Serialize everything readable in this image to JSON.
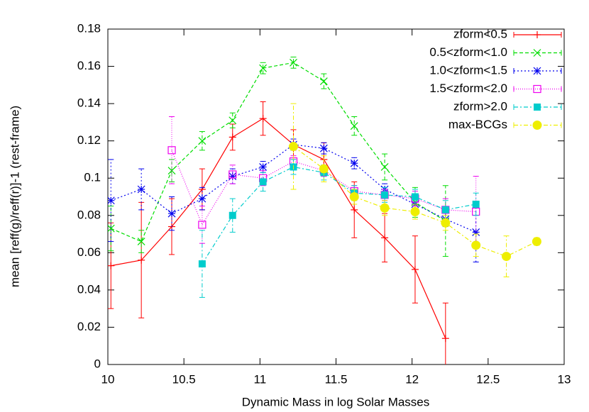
{
  "chart_data": {
    "type": "line",
    "x_label": "Dynamic Mass in log Solar Masses",
    "y_label": "mean [reff(g)/reff(r)]-1 (rest-frame)",
    "xlim": [
      10,
      13
    ],
    "xticks": [
      10,
      10.5,
      11,
      11.5,
      12,
      12.5,
      13
    ],
    "ylim": [
      0,
      0.18
    ],
    "yticks": [
      0,
      0.02,
      0.04,
      0.06,
      0.08,
      0.1,
      0.12,
      0.14,
      0.16,
      0.18
    ],
    "legend": "upper right",
    "series": [
      {
        "name": "zform<0.5",
        "color": "#ff0000",
        "marker": "plus",
        "dash": "none",
        "x": [
          10.02,
          10.22,
          10.42,
          10.62,
          10.82,
          11.02,
          11.22,
          11.42,
          11.62,
          11.82,
          12.02,
          12.22
        ],
        "values": [
          0.053,
          0.056,
          0.074,
          0.094,
          0.122,
          0.132,
          0.118,
          0.11,
          0.083,
          0.068,
          0.051,
          0.014
        ],
        "errors": [
          0.023,
          0.031,
          0.015,
          0.011,
          0.007,
          0.009,
          0.008,
          0.009,
          0.015,
          0.013,
          0.018,
          0.019
        ]
      },
      {
        "name": "0.5<zform<1.0",
        "color": "#00dd00",
        "marker": "cross",
        "dash": "5,3",
        "x": [
          10.02,
          10.22,
          10.42,
          10.62,
          10.82,
          11.02,
          11.22,
          11.42,
          11.62,
          11.82,
          12.02,
          12.22
        ],
        "values": [
          0.073,
          0.066,
          0.104,
          0.12,
          0.131,
          0.159,
          0.162,
          0.152,
          0.128,
          0.106,
          0.087,
          0.077
        ],
        "errors": [
          0.012,
          0.006,
          0.006,
          0.005,
          0.004,
          0.003,
          0.003,
          0.004,
          0.005,
          0.007,
          0.008,
          0.019
        ]
      },
      {
        "name": "1.0<zform<1.5",
        "color": "#0000ee",
        "marker": "star",
        "dash": "2,3",
        "x": [
          10.02,
          10.22,
          10.42,
          10.62,
          10.82,
          11.02,
          11.22,
          11.42,
          11.62,
          11.82,
          12.02,
          12.22,
          12.42
        ],
        "values": [
          0.088,
          0.094,
          0.081,
          0.089,
          0.101,
          0.106,
          0.118,
          0.116,
          0.108,
          0.094,
          0.086,
          0.078,
          0.071
        ],
        "errors": [
          0.022,
          0.011,
          0.009,
          0.006,
          0.004,
          0.003,
          0.003,
          0.003,
          0.003,
          0.003,
          0.004,
          0.004,
          0.016
        ]
      },
      {
        "name": "1.5<zform<2.0",
        "color": "#ee00ee",
        "marker": "square",
        "dash": "1,2",
        "x": [
          10.42,
          10.62,
          10.82,
          11.02,
          11.22,
          11.42,
          11.62,
          11.82,
          12.02,
          12.22,
          12.42
        ],
        "values": [
          0.115,
          0.075,
          0.102,
          0.1,
          0.109,
          0.104,
          0.093,
          0.091,
          0.089,
          0.083,
          0.082
        ],
        "errors": [
          0.018,
          0.01,
          0.005,
          0.004,
          0.003,
          0.003,
          0.003,
          0.003,
          0.004,
          0.006,
          0.019
        ]
      },
      {
        "name": "zform>2.0",
        "color": "#00cccc",
        "marker": "filled-square",
        "dash": "6,3,2,3",
        "x": [
          10.62,
          10.82,
          11.02,
          11.22,
          11.42,
          11.62,
          11.82,
          12.02,
          12.22,
          12.42
        ],
        "values": [
          0.054,
          0.08,
          0.098,
          0.106,
          0.103,
          0.092,
          0.091,
          0.09,
          0.083,
          0.086
        ],
        "errors": [
          0.018,
          0.009,
          0.005,
          0.004,
          0.004,
          0.004,
          0.004,
          0.004,
          0.005,
          0.006
        ]
      },
      {
        "name": "max-BCGs",
        "color": "#eeee00",
        "marker": "filled-circle",
        "dash": "6,3,2,3",
        "x": [
          11.22,
          11.42,
          11.62,
          11.82,
          12.02,
          12.22,
          12.42,
          12.62,
          12.82
        ],
        "values": [
          0.117,
          0.105,
          0.09,
          0.084,
          0.082,
          0.076,
          0.064,
          0.058,
          0.066
        ],
        "errors": [
          0.023,
          0.007,
          0.004,
          0.004,
          0.004,
          0.004,
          0.006,
          0.011,
          0.002
        ]
      }
    ]
  }
}
